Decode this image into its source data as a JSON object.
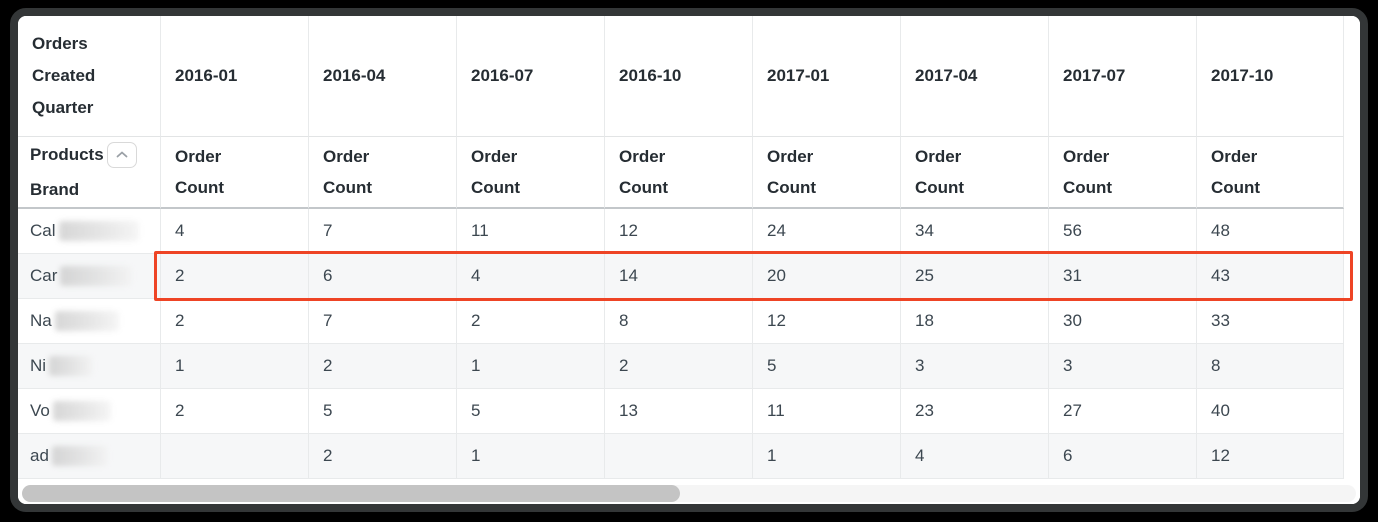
{
  "table": {
    "corner_header": "Orders Created Quarter",
    "quarters": [
      "2016-01",
      "2016-04",
      "2016-07",
      "2016-10",
      "2017-01",
      "2017-04",
      "2017-07",
      "2017-10"
    ],
    "row_dimension": {
      "line1": "Products",
      "line2": "Brand",
      "sort_icon": "chevron-up"
    },
    "measure_label": "Order\nCount",
    "rows": [
      {
        "brand_prefix": "Cal",
        "redacted": true,
        "highlighted": false,
        "values": [
          "4",
          "7",
          "11",
          "12",
          "24",
          "34",
          "56",
          "48"
        ]
      },
      {
        "brand_prefix": "Car",
        "redacted": true,
        "highlighted": true,
        "values": [
          "2",
          "6",
          "4",
          "14",
          "20",
          "25",
          "31",
          "43"
        ]
      },
      {
        "brand_prefix": "Na",
        "redacted": true,
        "highlighted": false,
        "values": [
          "2",
          "7",
          "2",
          "8",
          "12",
          "18",
          "30",
          "33"
        ]
      },
      {
        "brand_prefix": "Ni",
        "redacted": true,
        "highlighted": false,
        "values": [
          "1",
          "2",
          "1",
          "2",
          "5",
          "3",
          "3",
          "8"
        ]
      },
      {
        "brand_prefix": "Vo",
        "redacted": true,
        "highlighted": false,
        "values": [
          "2",
          "5",
          "5",
          "13",
          "11",
          "23",
          "27",
          "40"
        ]
      },
      {
        "brand_prefix": "ad",
        "redacted": true,
        "highlighted": false,
        "values": [
          "",
          "2",
          "1",
          "",
          "1",
          "4",
          "6",
          "12"
        ]
      }
    ],
    "highlight_color": "#ee4425"
  },
  "scrollbar": {
    "orientation": "horizontal"
  }
}
